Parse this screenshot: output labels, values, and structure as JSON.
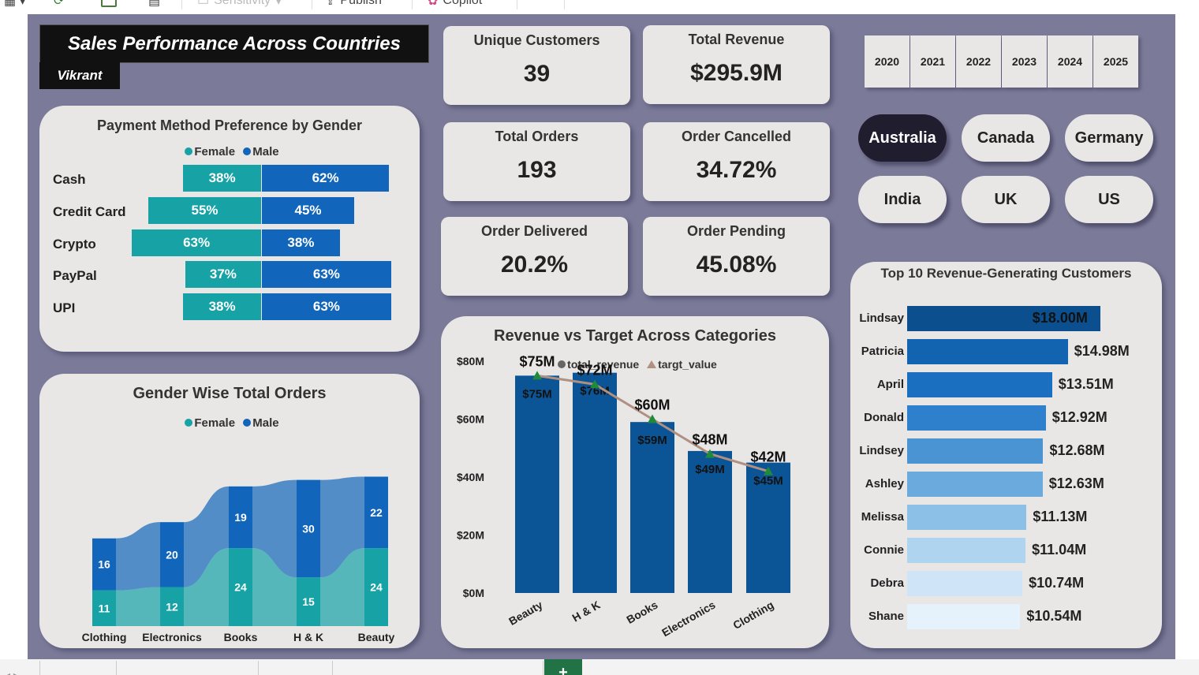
{
  "toolbar": {
    "sensitivity_label": "Sensitivity",
    "publish_label": "Publish",
    "copilot_label": "Copilot"
  },
  "dashboard": {
    "title": "Sales Performance Across Countries",
    "author": "Vikrant"
  },
  "kpis": [
    {
      "label": "Unique Customers",
      "value": "39"
    },
    {
      "label": "Total Revenue",
      "value": "$295.9M"
    },
    {
      "label": "Total Orders",
      "value": "193"
    },
    {
      "label": "Order Cancelled",
      "value": "34.72%"
    },
    {
      "label": "Order Delivered",
      "value": "20.2%"
    },
    {
      "label": "Order Pending",
      "value": "45.08%"
    }
  ],
  "years": [
    "2020",
    "2021",
    "2022",
    "2023",
    "2024",
    "2025"
  ],
  "countries": [
    {
      "label": "Australia",
      "selected": true
    },
    {
      "label": "Canada",
      "selected": false
    },
    {
      "label": "Germany",
      "selected": false
    },
    {
      "label": "India",
      "selected": false
    },
    {
      "label": "UK",
      "selected": false
    },
    {
      "label": "US",
      "selected": false
    }
  ],
  "colors": {
    "female": "#17a3a6",
    "male": "#1166bb",
    "canvas": "#7b7b99",
    "card": "#e9e6e6",
    "revenue_bar": "#0b5597",
    "target_line": "#b09080",
    "target_marker": "#1f8a3a"
  },
  "chart_data": [
    {
      "id": "payment_method",
      "type": "bar",
      "title": "Payment Method Preference by Gender",
      "legend": [
        "Female",
        "Male"
      ],
      "categories": [
        "Cash",
        "Credit Card",
        "Crypto",
        "PayPal",
        "UPI"
      ],
      "series": [
        {
          "name": "Female",
          "values": [
            38,
            55,
            63,
            37,
            38
          ]
        },
        {
          "name": "Male",
          "values": [
            62,
            45,
            38,
            63,
            63
          ]
        }
      ],
      "labels": {
        "Female": [
          "38%",
          "55%",
          "63%",
          "37%",
          "38%"
        ],
        "Male": [
          "62%",
          "45%",
          "38%",
          "63%",
          "63%"
        ]
      }
    },
    {
      "id": "gender_orders",
      "type": "bar",
      "title": "Gender Wise Total Orders",
      "legend": [
        "Female",
        "Male"
      ],
      "categories": [
        "Clothing",
        "Electronics",
        "Books",
        "H & K",
        "Beauty"
      ],
      "series": [
        {
          "name": "Female",
          "values": [
            11,
            12,
            24,
            15,
            24
          ]
        },
        {
          "name": "Male",
          "values": [
            16,
            20,
            19,
            30,
            22
          ]
        }
      ]
    },
    {
      "id": "revenue_target",
      "type": "bar",
      "title": "Revenue vs Target Across Categories",
      "legend": [
        "total_revenue",
        "targt_value"
      ],
      "categories": [
        "Beauty",
        "H & K",
        "Books",
        "Electronics",
        "Clothing"
      ],
      "series": [
        {
          "name": "total_revenue",
          "values": [
            75,
            76,
            59,
            49,
            45
          ]
        },
        {
          "name": "targt_value",
          "values": [
            75,
            72,
            60,
            48,
            42
          ]
        }
      ],
      "revenue_labels": [
        "$75M",
        "$76M",
        "$59M",
        "$49M",
        "$45M"
      ],
      "target_labels": [
        "$75M",
        "$72M",
        "$60M",
        "$48M",
        "$42M"
      ],
      "yticks": [
        "$0M",
        "$20M",
        "$40M",
        "$60M",
        "$80M"
      ],
      "ylim": [
        0,
        80
      ]
    },
    {
      "id": "top_customers",
      "type": "bar",
      "title": "Top 10 Revenue-Generating Customers",
      "categories": [
        "Lindsay",
        "Patricia",
        "April",
        "Donald",
        "Lindsey",
        "Ashley",
        "Melissa",
        "Connie",
        "Debra",
        "Shane"
      ],
      "values": [
        18.0,
        14.98,
        13.51,
        12.92,
        12.68,
        12.63,
        11.13,
        11.04,
        10.74,
        10.54
      ],
      "labels": [
        "$18.00M",
        "$14.98M",
        "$13.51M",
        "$12.92M",
        "$12.68M",
        "$12.63M",
        "$11.13M",
        "$11.04M",
        "$10.74M",
        "$10.54M"
      ],
      "colors": [
        "#0b4f8f",
        "#1264b0",
        "#1a6fc0",
        "#2e80cc",
        "#4a94d4",
        "#6aaadc",
        "#8cc0e6",
        "#aed4f0",
        "#cfe4f6",
        "#e6f2fb"
      ]
    }
  ]
}
